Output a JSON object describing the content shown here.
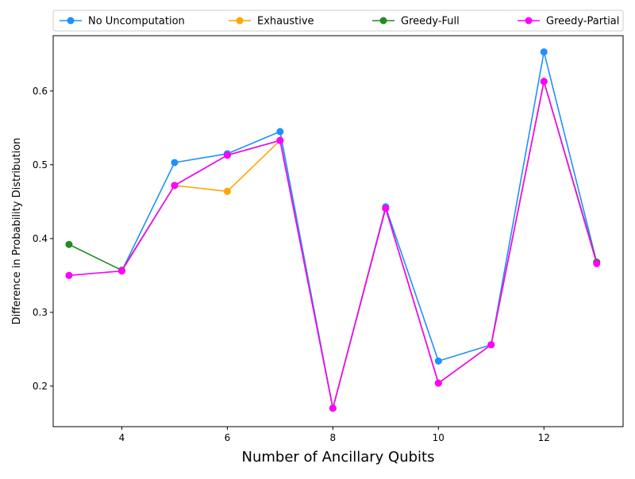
{
  "chart_data": {
    "type": "line",
    "xlabel": "Number of Ancillary Qubits",
    "ylabel": "Difference in Probability Distribution",
    "xlim": [
      2.7,
      13.5
    ],
    "ylim": [
      0.145,
      0.675
    ],
    "xticks": [
      4,
      6,
      8,
      10,
      12
    ],
    "yticks": [
      0.2,
      0.3,
      0.4,
      0.5,
      0.6
    ],
    "xtick_labels": [
      "4",
      "6",
      "8",
      "10",
      "12"
    ],
    "ytick_labels": [
      "0.2",
      "0.3",
      "0.4",
      "0.5",
      "0.6"
    ],
    "grid": false,
    "legend_position": "top, above plot",
    "series": [
      {
        "name": "No Uncomputation",
        "color": "#1e90ff",
        "x": [
          4,
          5,
          6,
          7,
          8,
          9,
          10,
          11,
          12,
          13
        ],
        "y": [
          0.356,
          0.503,
          0.515,
          0.545,
          0.17,
          0.443,
          0.234,
          0.256,
          0.653,
          0.368
        ]
      },
      {
        "name": "Exhaustive",
        "color": "#ffa500",
        "x": [
          5,
          6,
          7,
          8,
          9,
          10,
          11,
          12,
          13
        ],
        "y": [
          0.472,
          0.464,
          0.533,
          0.17,
          0.441,
          0.204,
          0.256,
          0.613,
          0.368
        ]
      },
      {
        "name": "Greedy-Full",
        "color": "#228b22",
        "x": [
          3,
          4,
          5,
          6,
          7,
          8,
          9,
          10,
          11,
          12,
          13
        ],
        "y": [
          0.392,
          0.357,
          0.472,
          0.513,
          0.533,
          0.17,
          0.441,
          0.204,
          0.256,
          0.613,
          0.368
        ]
      },
      {
        "name": "Greedy-Partial",
        "color": "#ff00ff",
        "x": [
          3,
          4,
          5,
          6,
          7,
          8,
          9,
          10,
          11,
          12,
          13
        ],
        "y": [
          0.35,
          0.356,
          0.472,
          0.513,
          0.533,
          0.17,
          0.441,
          0.204,
          0.256,
          0.613,
          0.366
        ]
      }
    ]
  }
}
